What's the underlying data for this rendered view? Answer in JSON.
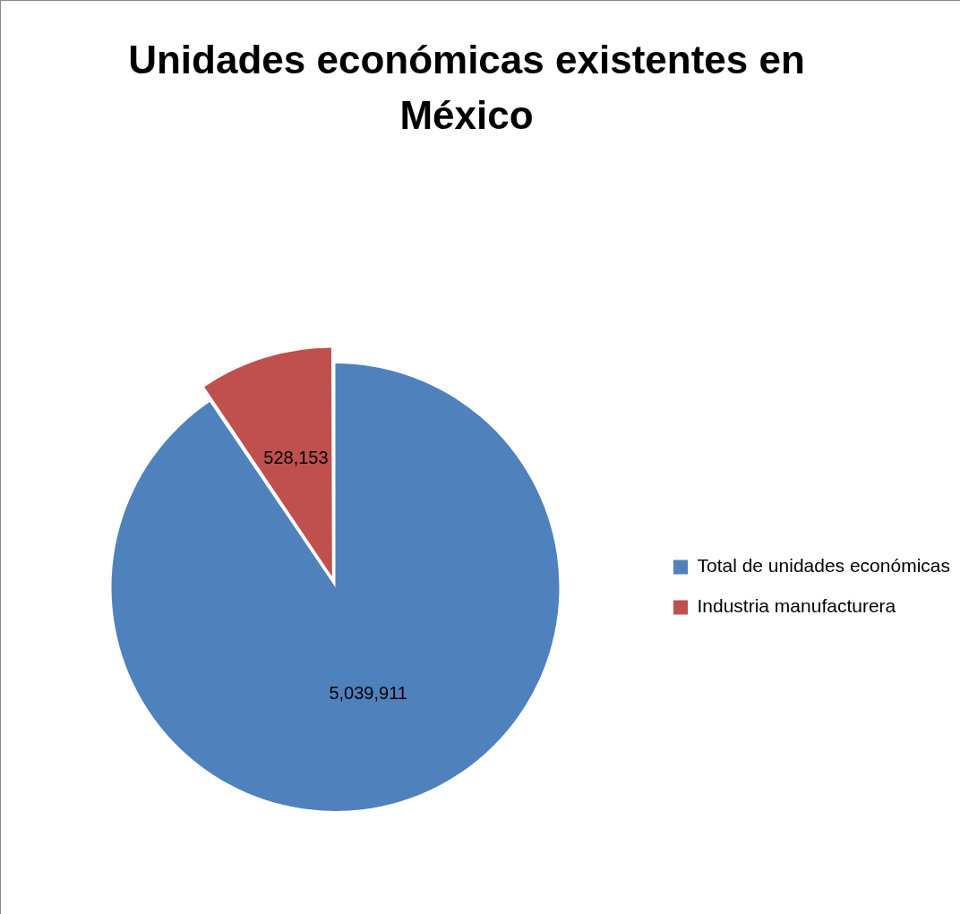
{
  "chart_data": {
    "type": "pie",
    "title": "Unidades económicas existentes en México",
    "categories": [
      "Total de unidades económicas",
      "Industria manufacturera"
    ],
    "values": [
      5039911,
      528153
    ],
    "colors": [
      "#4f81bd",
      "#c0504d"
    ],
    "value_labels": [
      "5,039,911",
      "528,153"
    ],
    "legend": "right"
  }
}
